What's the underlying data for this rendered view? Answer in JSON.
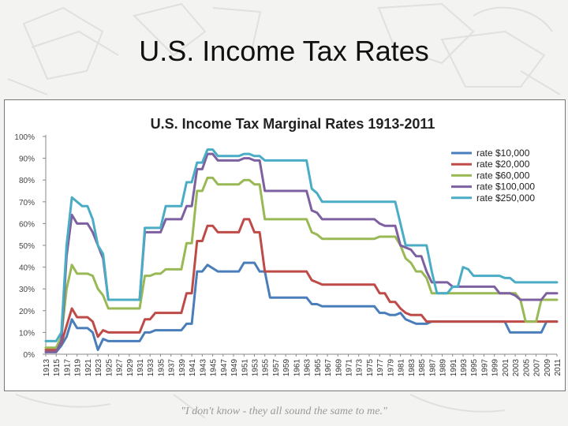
{
  "slide": {
    "title": "U.S. Income Tax Rates",
    "caption": "\"I don't know - they all sound the same to me.\""
  },
  "chart_data": {
    "type": "line",
    "title": "U.S. Income Tax Marginal Rates 1913-2011",
    "xlabel": "",
    "ylabel": "",
    "xlim": [
      1913,
      2011
    ],
    "ylim": [
      0,
      100
    ],
    "y_ticks": [
      0,
      10,
      20,
      30,
      40,
      50,
      60,
      70,
      80,
      90,
      100
    ],
    "y_tick_format": "percent",
    "x_tick_labels": [
      "1913",
      "1915",
      "1917",
      "1919",
      "1921",
      "1923",
      "1925",
      "1927",
      "1929",
      "1931",
      "1933",
      "1935",
      "1937",
      "1939",
      "1941",
      "1943",
      "1945",
      "1947",
      "1949",
      "1951",
      "1953",
      "1955",
      "1957",
      "1959",
      "1961",
      "1963",
      "1965",
      "1967",
      "1969",
      "1971",
      "1973",
      "1975",
      "1977",
      "1979",
      "1981",
      "1983",
      "1985",
      "1987",
      "1989",
      "1991",
      "1993",
      "1995",
      "1997",
      "1999",
      "2001",
      "2003",
      "2005",
      "2007",
      "2009",
      "2011"
    ],
    "grid": false,
    "legend_position": "top-right",
    "series": [
      {
        "name": "rate $10,000",
        "color": "#4a7ebb",
        "points": [
          [
            1913,
            1
          ],
          [
            1915,
            1
          ],
          [
            1916,
            4
          ],
          [
            1917,
            8
          ],
          [
            1918,
            16
          ],
          [
            1919,
            12
          ],
          [
            1921,
            12
          ],
          [
            1922,
            10
          ],
          [
            1923,
            2
          ],
          [
            1924,
            7
          ],
          [
            1925,
            6
          ],
          [
            1931,
            6
          ],
          [
            1932,
            10
          ],
          [
            1933,
            10
          ],
          [
            1934,
            11
          ],
          [
            1936,
            11
          ],
          [
            1939,
            11
          ],
          [
            1940,
            14
          ],
          [
            1941,
            14
          ],
          [
            1942,
            38
          ],
          [
            1943,
            38
          ],
          [
            1944,
            41
          ],
          [
            1946,
            38
          ],
          [
            1950,
            38
          ],
          [
            1951,
            42
          ],
          [
            1953,
            42
          ],
          [
            1954,
            38
          ],
          [
            1955,
            38
          ],
          [
            1956,
            26
          ],
          [
            1963,
            26
          ],
          [
            1964,
            23
          ],
          [
            1965,
            23
          ],
          [
            1966,
            22
          ],
          [
            1976,
            22
          ],
          [
            1977,
            19
          ],
          [
            1978,
            19
          ],
          [
            1979,
            18
          ],
          [
            1980,
            18
          ],
          [
            1981,
            19
          ],
          [
            1982,
            16
          ],
          [
            1983,
            15
          ],
          [
            1984,
            14
          ],
          [
            1986,
            14
          ],
          [
            1987,
            15
          ],
          [
            2001,
            15
          ],
          [
            2002,
            10
          ],
          [
            2003,
            10
          ],
          [
            2008,
            10
          ],
          [
            2009,
            15
          ],
          [
            2011,
            15
          ]
        ]
      },
      {
        "name": "rate $20,000",
        "color": "#be4b48",
        "points": [
          [
            1913,
            2
          ],
          [
            1915,
            2
          ],
          [
            1916,
            5
          ],
          [
            1917,
            13
          ],
          [
            1918,
            21
          ],
          [
            1919,
            17
          ],
          [
            1921,
            17
          ],
          [
            1922,
            15
          ],
          [
            1923,
            8
          ],
          [
            1924,
            11
          ],
          [
            1925,
            10
          ],
          [
            1931,
            10
          ],
          [
            1932,
            16
          ],
          [
            1933,
            16
          ],
          [
            1934,
            19
          ],
          [
            1936,
            19
          ],
          [
            1939,
            19
          ],
          [
            1940,
            28
          ],
          [
            1941,
            28
          ],
          [
            1942,
            52
          ],
          [
            1943,
            52
          ],
          [
            1944,
            59
          ],
          [
            1945,
            59
          ],
          [
            1946,
            56
          ],
          [
            1950,
            56
          ],
          [
            1951,
            62
          ],
          [
            1952,
            62
          ],
          [
            1953,
            56
          ],
          [
            1954,
            56
          ],
          [
            1955,
            38
          ],
          [
            1963,
            38
          ],
          [
            1964,
            34
          ],
          [
            1965,
            33
          ],
          [
            1966,
            32
          ],
          [
            1976,
            32
          ],
          [
            1977,
            28
          ],
          [
            1978,
            28
          ],
          [
            1979,
            24
          ],
          [
            1980,
            24
          ],
          [
            1981,
            21
          ],
          [
            1982,
            19
          ],
          [
            1983,
            18
          ],
          [
            1985,
            18
          ],
          [
            1986,
            15
          ],
          [
            2011,
            15
          ]
        ]
      },
      {
        "name": "rate $60,000",
        "color": "#98b954",
        "points": [
          [
            1913,
            3
          ],
          [
            1915,
            3
          ],
          [
            1916,
            8
          ],
          [
            1917,
            30
          ],
          [
            1918,
            41
          ],
          [
            1919,
            37
          ],
          [
            1921,
            37
          ],
          [
            1922,
            36
          ],
          [
            1923,
            30
          ],
          [
            1924,
            27
          ],
          [
            1925,
            21
          ],
          [
            1931,
            21
          ],
          [
            1932,
            36
          ],
          [
            1933,
            36
          ],
          [
            1934,
            37
          ],
          [
            1935,
            37
          ],
          [
            1936,
            39
          ],
          [
            1939,
            39
          ],
          [
            1940,
            51
          ],
          [
            1941,
            51
          ],
          [
            1942,
            75
          ],
          [
            1943,
            75
          ],
          [
            1944,
            81
          ],
          [
            1945,
            81
          ],
          [
            1946,
            78
          ],
          [
            1950,
            78
          ],
          [
            1951,
            80
          ],
          [
            1952,
            80
          ],
          [
            1953,
            78
          ],
          [
            1954,
            78
          ],
          [
            1955,
            62
          ],
          [
            1963,
            62
          ],
          [
            1964,
            56
          ],
          [
            1965,
            55
          ],
          [
            1966,
            53
          ],
          [
            1976,
            53
          ],
          [
            1977,
            54
          ],
          [
            1980,
            54
          ],
          [
            1981,
            50
          ],
          [
            1982,
            44
          ],
          [
            1983,
            42
          ],
          [
            1984,
            38
          ],
          [
            1985,
            38
          ],
          [
            1986,
            35
          ],
          [
            1987,
            28
          ],
          [
            1993,
            28
          ],
          [
            1994,
            28
          ],
          [
            2003,
            28
          ],
          [
            2004,
            25
          ],
          [
            2005,
            15
          ],
          [
            2006,
            15
          ],
          [
            2007,
            15
          ],
          [
            2008,
            25
          ],
          [
            2011,
            25
          ]
        ]
      },
      {
        "name": "rate $100,000",
        "color": "#7d60a0",
        "points": [
          [
            1913,
            1
          ],
          [
            1915,
            1
          ],
          [
            1916,
            6
          ],
          [
            1917,
            45
          ],
          [
            1918,
            64
          ],
          [
            1919,
            60
          ],
          [
            1921,
            60
          ],
          [
            1922,
            56
          ],
          [
            1923,
            50
          ],
          [
            1924,
            44
          ],
          [
            1925,
            25
          ],
          [
            1931,
            25
          ],
          [
            1932,
            56
          ],
          [
            1933,
            56
          ],
          [
            1934,
            56
          ],
          [
            1935,
            56
          ],
          [
            1936,
            62
          ],
          [
            1939,
            62
          ],
          [
            1940,
            68
          ],
          [
            1941,
            68
          ],
          [
            1942,
            85
          ],
          [
            1943,
            85
          ],
          [
            1944,
            92
          ],
          [
            1945,
            92
          ],
          [
            1946,
            89
          ],
          [
            1950,
            89
          ],
          [
            1951,
            90
          ],
          [
            1952,
            90
          ],
          [
            1953,
            89
          ],
          [
            1954,
            89
          ],
          [
            1955,
            75
          ],
          [
            1963,
            75
          ],
          [
            1964,
            66
          ],
          [
            1965,
            65
          ],
          [
            1966,
            62
          ],
          [
            1976,
            62
          ],
          [
            1977,
            60
          ],
          [
            1978,
            59
          ],
          [
            1980,
            59
          ],
          [
            1981,
            50
          ],
          [
            1982,
            49
          ],
          [
            1983,
            48
          ],
          [
            1984,
            45
          ],
          [
            1985,
            45
          ],
          [
            1986,
            38
          ],
          [
            1987,
            33
          ],
          [
            1990,
            33
          ],
          [
            1991,
            31
          ],
          [
            1993,
            31
          ],
          [
            1994,
            31
          ],
          [
            1999,
            31
          ],
          [
            2000,
            28
          ],
          [
            2002,
            28
          ],
          [
            2003,
            27
          ],
          [
            2004,
            25
          ],
          [
            2008,
            25
          ],
          [
            2009,
            28
          ],
          [
            2011,
            28
          ]
        ]
      },
      {
        "name": "rate $250,000",
        "color": "#4bacc6",
        "points": [
          [
            1913,
            6
          ],
          [
            1915,
            6
          ],
          [
            1916,
            10
          ],
          [
            1917,
            50
          ],
          [
            1918,
            72
          ],
          [
            1919,
            70
          ],
          [
            1920,
            68
          ],
          [
            1921,
            68
          ],
          [
            1922,
            62
          ],
          [
            1923,
            50
          ],
          [
            1924,
            46
          ],
          [
            1925,
            25
          ],
          [
            1931,
            25
          ],
          [
            1932,
            58
          ],
          [
            1933,
            58
          ],
          [
            1934,
            58
          ],
          [
            1935,
            58
          ],
          [
            1936,
            68
          ],
          [
            1939,
            68
          ],
          [
            1940,
            79
          ],
          [
            1941,
            79
          ],
          [
            1942,
            88
          ],
          [
            1943,
            88
          ],
          [
            1944,
            94
          ],
          [
            1945,
            94
          ],
          [
            1946,
            91
          ],
          [
            1950,
            91
          ],
          [
            1951,
            92
          ],
          [
            1952,
            92
          ],
          [
            1953,
            91
          ],
          [
            1954,
            91
          ],
          [
            1955,
            89
          ],
          [
            1963,
            89
          ],
          [
            1964,
            76
          ],
          [
            1965,
            74
          ],
          [
            1966,
            70
          ],
          [
            1980,
            70
          ],
          [
            1981,
            60
          ],
          [
            1982,
            50
          ],
          [
            1986,
            50
          ],
          [
            1987,
            38
          ],
          [
            1988,
            28
          ],
          [
            1990,
            28
          ],
          [
            1991,
            31
          ],
          [
            1992,
            31
          ],
          [
            1993,
            40
          ],
          [
            1994,
            39
          ],
          [
            1995,
            36
          ],
          [
            2000,
            36
          ],
          [
            2001,
            35
          ],
          [
            2002,
            35
          ],
          [
            2003,
            33
          ],
          [
            2011,
            33
          ]
        ]
      }
    ]
  }
}
